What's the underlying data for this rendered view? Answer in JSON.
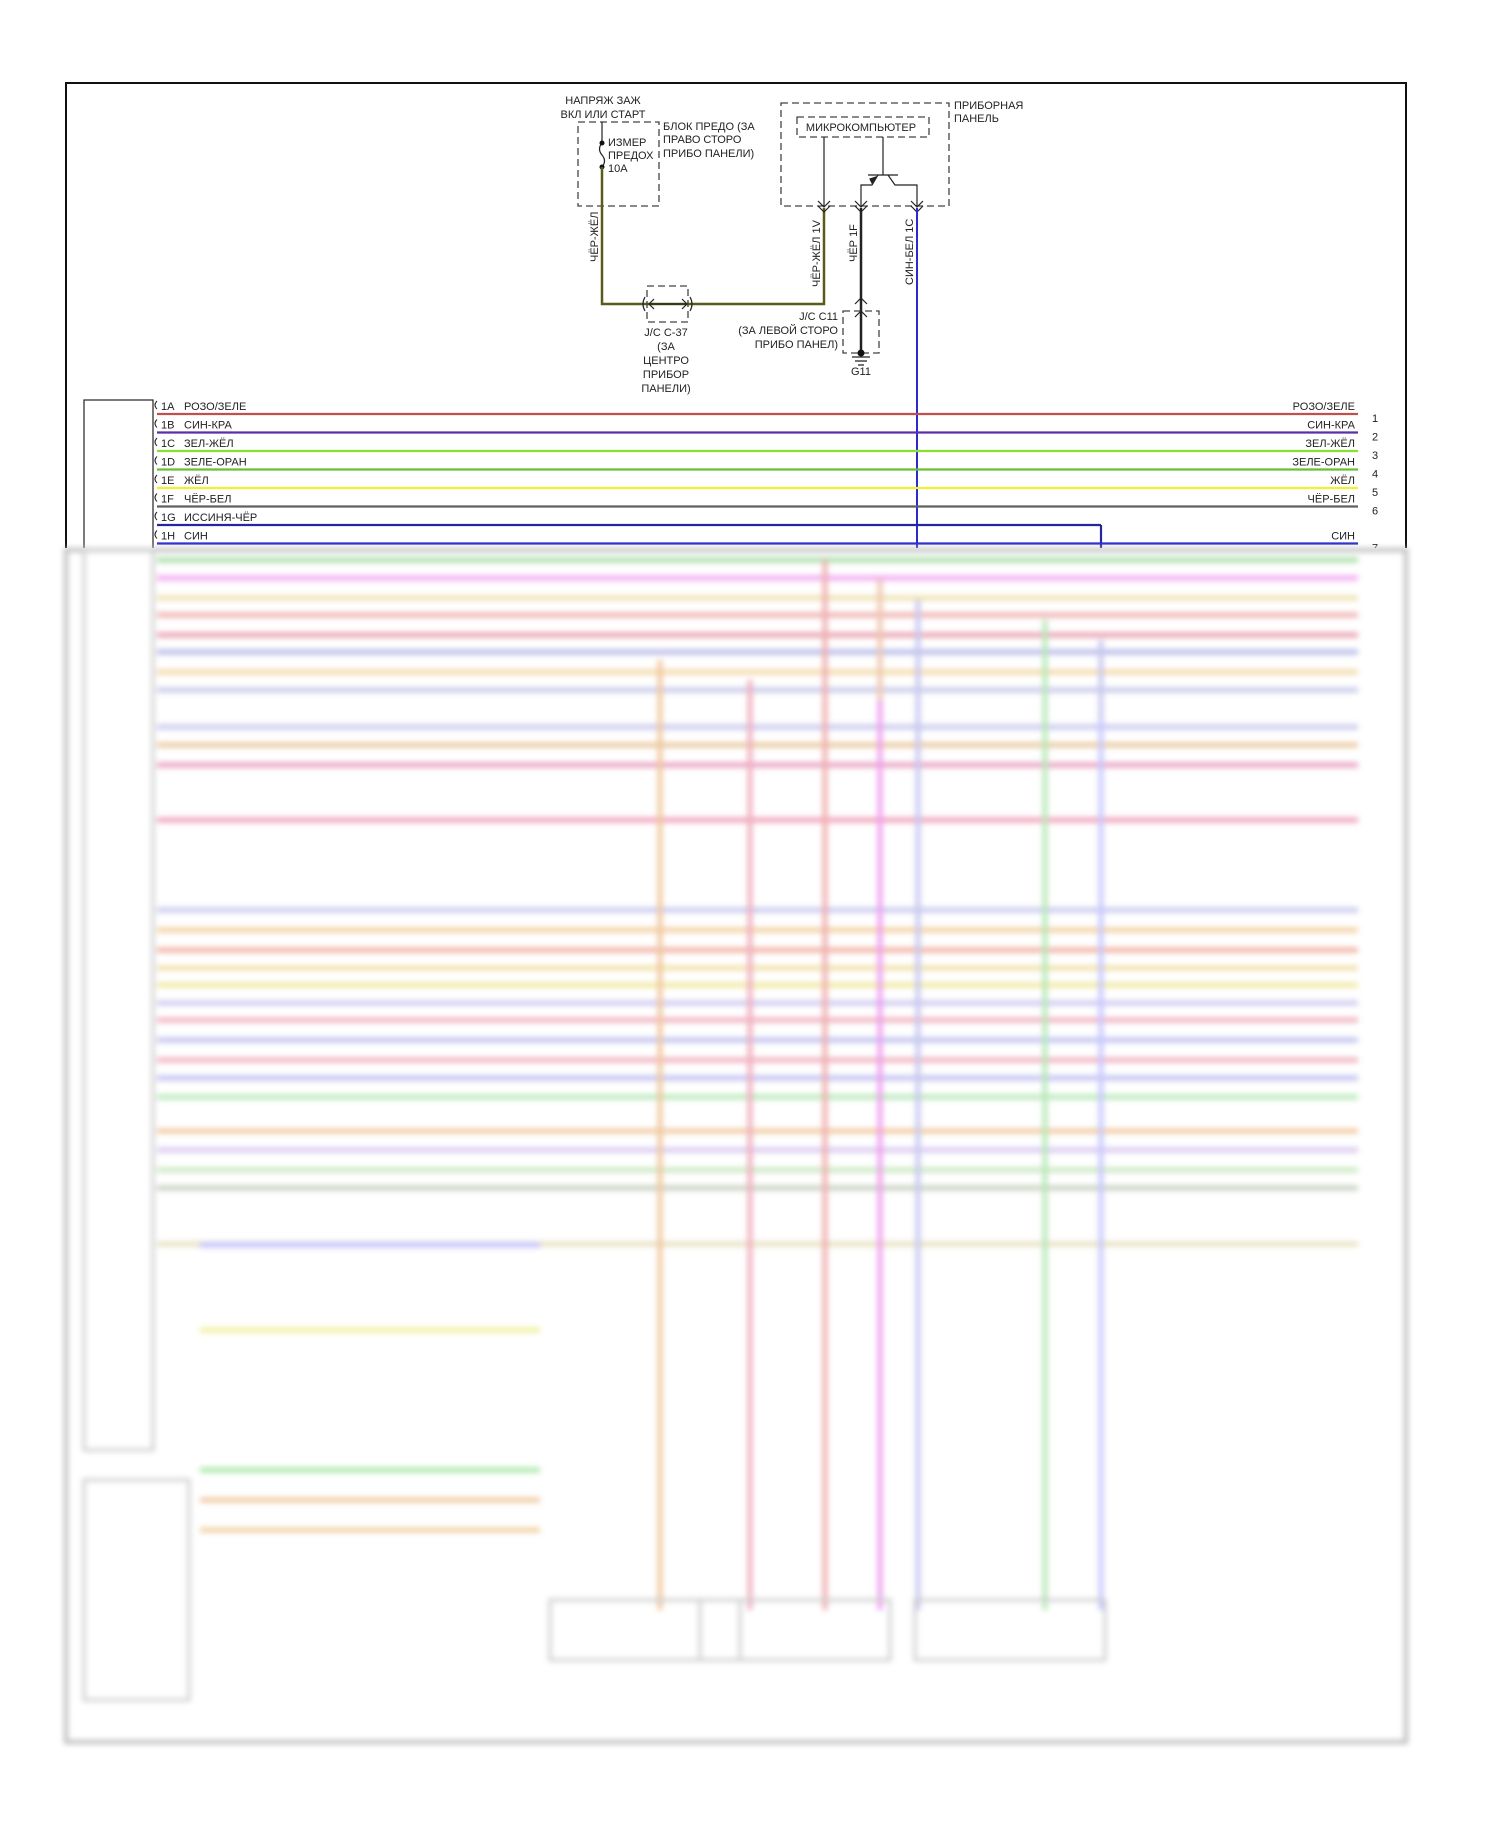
{
  "top": {
    "ignition_label": [
      "НАПРЯЖ ЗАЖ",
      "ВКЛ ИЛИ СТАРТ"
    ],
    "fuse_label": [
      "ИЗМЕР",
      "ПРЕДОХ",
      "10А"
    ],
    "fuse_block_label": [
      "БЛОК ПРЕДО (ЗА",
      "ПРАВО СТОРО",
      "ПРИБО ПАНЕЛИ)"
    ],
    "instrument_panel_label": [
      "ПРИБОРНАЯ",
      "ПАНЕЛЬ"
    ],
    "microcomputer_label": "МИКРОКОМПЬЮТЕР",
    "wire_left": "ЧЁР-ЖЁЛ",
    "wire_1v": "ЧЁР-ЖЁЛ  1V",
    "wire_1f": "ЧЁР  1F",
    "wire_1c": "СИН-БЕЛ  1C",
    "jc37_label": [
      "J/C C-37",
      "(ЗА",
      "ЦЕНТРО",
      "ПРИБОР",
      "ПАНЕЛИ)"
    ],
    "jc11_label": [
      "J/C C11",
      "(ЗА ЛЕВОЙ СТОРО",
      "ПРИБО ПАНЕЛ)"
    ],
    "ground_label": "G11"
  },
  "wires": [
    {
      "pin": "1A",
      "left": "РОЗО/ЗЕЛЕ",
      "right": "РОЗО/ЗЕЛЕ",
      "num": "1",
      "color": "#c0504d"
    },
    {
      "pin": "1B",
      "left": "СИН-КРА",
      "right": "СИН-КРА",
      "num": "2",
      "color": "#5a30a8"
    },
    {
      "pin": "1C",
      "left": "ЗЕЛ-ЖЁЛ",
      "right": "ЗЕЛ-ЖЁЛ",
      "num": "3",
      "color": "#88e030"
    },
    {
      "pin": "1D",
      "left": "ЗЕЛЕ-ОРАН",
      "right": "ЗЕЛЕ-ОРАН",
      "num": "4",
      "color": "#66c033"
    },
    {
      "pin": "1E",
      "left": "ЖЁЛ",
      "right": "ЖЁЛ",
      "num": "5",
      "color": "#f2f030"
    },
    {
      "pin": "1F",
      "left": "ЧЁР-БЕЛ",
      "right": "ЧЁР-БЕЛ",
      "num": "6",
      "color": "#606060"
    },
    {
      "pin": "1G",
      "left": "ИССИНЯ-ЧЁР",
      "right": "",
      "num": "",
      "color": "#2525a0"
    },
    {
      "pin": "1H",
      "left": "СИН",
      "right": "СИН",
      "num": "7",
      "color": "#2a2ad0"
    }
  ]
}
